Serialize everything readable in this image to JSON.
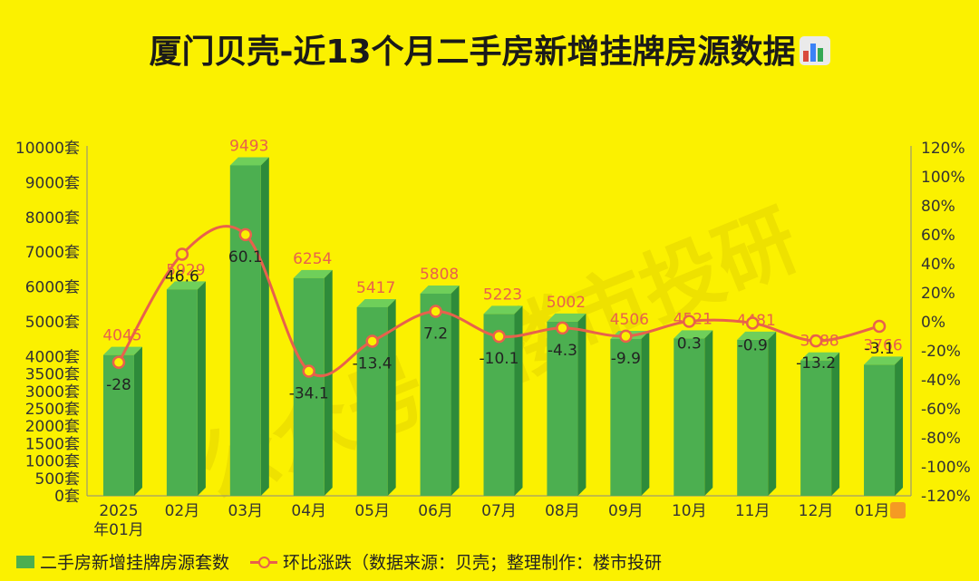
{
  "title": "厦门贝壳-近13个月二手房新增挂牌房源数据",
  "title_icon": "bar-chart-emoji-icon",
  "legend": {
    "bar_label": "二手房新增挂牌房源套数",
    "line_label": "环比涨跌（数据来源：贝壳；整理制作：楼市投研"
  },
  "watermark": "公众号：楼市投研",
  "colors": {
    "background": "#fbf100",
    "bar": "#4caf50",
    "line": "#e8614c",
    "bar_label": "#e8614c",
    "line_label": "#222222"
  },
  "chart_data": {
    "type": "bar",
    "categories": [
      "2025\n年01月",
      "02月",
      "03月",
      "04月",
      "05月",
      "06月",
      "07月",
      "08月",
      "09月",
      "10月",
      "11月",
      "12月",
      "01月"
    ],
    "series": [
      {
        "name": "二手房新增挂牌房源套数",
        "type": "bar",
        "axis": "left",
        "values": [
          4045,
          5929,
          9493,
          6254,
          5417,
          5808,
          5223,
          5002,
          4506,
          4521,
          4481,
          3888,
          3766
        ],
        "value_labels": [
          "4045",
          "5929",
          "9493",
          "6254",
          "5417",
          "5808",
          "5223",
          "5002",
          "4506",
          "4521",
          "4481",
          "3888",
          "3766"
        ]
      },
      {
        "name": "环比涨跌",
        "type": "line",
        "axis": "right",
        "values": [
          -28,
          46.6,
          60.1,
          -34.1,
          -13.4,
          7.2,
          -10.1,
          -4.3,
          -9.9,
          0.3,
          -0.9,
          -13.2,
          -3.1
        ],
        "value_labels": [
          "-28",
          "46.6",
          "60.1",
          "-34.1",
          "-13.4",
          "7.2",
          "-10.1",
          "-4.3",
          "-9.9",
          "0.3",
          "-0.9",
          "-13.2",
          "-3.1"
        ]
      }
    ],
    "left_axis": {
      "range": [
        0,
        10000
      ],
      "ticks": [
        0,
        500,
        1000,
        1500,
        2000,
        2500,
        3000,
        3500,
        4000,
        5000,
        6000,
        7000,
        8000,
        9000,
        10000
      ],
      "tick_labels": [
        "0套",
        "500套",
        "1000套",
        "1500套",
        "2000套",
        "2500套",
        "3000套",
        "3500套",
        "4000套",
        "5000套",
        "6000套",
        "7000套",
        "8000套",
        "9000套",
        "10000套"
      ]
    },
    "right_axis": {
      "range": [
        -120,
        120
      ],
      "ticks": [
        -120,
        -100,
        -80,
        -60,
        -40,
        -20,
        0,
        20,
        40,
        60,
        80,
        100,
        120
      ],
      "tick_labels": [
        "-120%",
        "-100%",
        "-80%",
        "-60%",
        "-40%",
        "-20%",
        "0%",
        "20%",
        "40%",
        "60%",
        "80%",
        "100%",
        "120%"
      ]
    },
    "grid": false,
    "legend_position": "bottom-left"
  }
}
